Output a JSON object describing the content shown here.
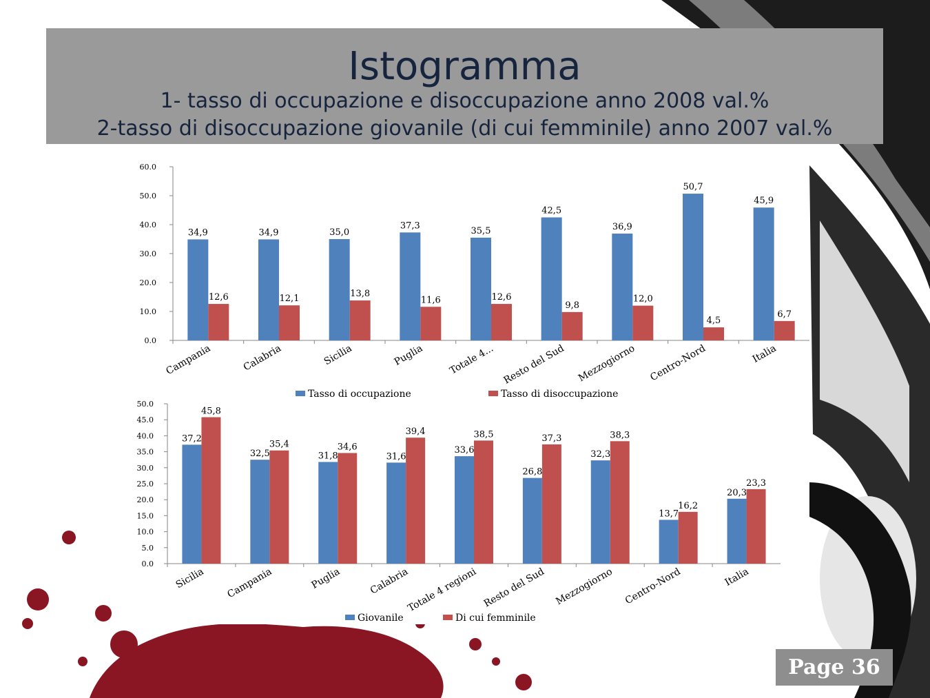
{
  "slide": {
    "title": "Istogramma",
    "subtitle_line1": "1- tasso di occupazione e disoccupazione anno 2008 val.%",
    "subtitle_line2": "2-tasso di disoccupazione giovanile (di cui femminile) anno 2007 val.%",
    "page_label": "Page 36",
    "colors": {
      "blue": "#4f81bd",
      "red": "#c0504d",
      "band": "#9a9a9a",
      "title_text": "#17243d"
    }
  },
  "chart_data": [
    {
      "type": "bar",
      "categories": [
        "Campania",
        "Calabria",
        "Sicilia",
        "Puglia",
        "Totale 4...",
        "Resto del Sud",
        "Mezzogiorno",
        "Centro-Nord",
        "Italia"
      ],
      "y_ticks": [
        "60.0",
        "50.0",
        "40.0",
        "30.0",
        "20.0",
        "10.0",
        "0.0"
      ],
      "ylim": [
        0,
        60
      ],
      "legend_position": "bottom",
      "series": [
        {
          "name": "Tasso di occupazione",
          "color": "#4f81bd",
          "values": [
            34.9,
            34.9,
            35.0,
            37.3,
            35.5,
            42.5,
            36.9,
            50.7,
            45.9
          ],
          "labels": [
            "34,9",
            "34,9",
            "35,0",
            "37,3",
            "35,5",
            "42,5",
            "36,9",
            "50,7",
            "45,9"
          ]
        },
        {
          "name": "Tasso di disoccupazione",
          "color": "#c0504d",
          "values": [
            12.6,
            12.1,
            13.8,
            11.6,
            12.6,
            9.8,
            12.0,
            4.5,
            6.7
          ],
          "labels": [
            "12,6",
            "12,1",
            "13,8",
            "11,6",
            "12,6",
            "9,8",
            "12,0",
            "4,5",
            "6,7"
          ]
        }
      ]
    },
    {
      "type": "bar",
      "categories": [
        "Sicilia",
        "Campania",
        "Puglia",
        "Calabria",
        "Totale 4 regioni",
        "Resto del Sud",
        "Mezzogiorno",
        "Centro-Nord",
        "Italia"
      ],
      "y_ticks": [
        "50.0",
        "45.0",
        "40.0",
        "35.0",
        "30.0",
        "25.0",
        "20.0",
        "15.0",
        "10.0",
        "5.0",
        "0.0"
      ],
      "ylim": [
        0,
        50
      ],
      "legend_position": "bottom",
      "series": [
        {
          "name": "Giovanile",
          "color": "#4f81bd",
          "values": [
            37.2,
            32.5,
            31.8,
            31.6,
            33.6,
            26.8,
            32.3,
            13.7,
            20.3
          ],
          "labels": [
            "37,2",
            "32,5",
            "31,8",
            "31,6",
            "33,6",
            "26,8",
            "32,3",
            "13,7",
            "20,3"
          ]
        },
        {
          "name": "Di cui femminile",
          "color": "#c0504d",
          "values": [
            45.8,
            35.4,
            34.6,
            39.4,
            38.5,
            37.3,
            38.3,
            16.2,
            23.3
          ],
          "labels": [
            "45,8",
            "35,4",
            "34,6",
            "39,4",
            "38,5",
            "37,3",
            "38,3",
            "16,2",
            "23,3"
          ]
        }
      ]
    }
  ]
}
